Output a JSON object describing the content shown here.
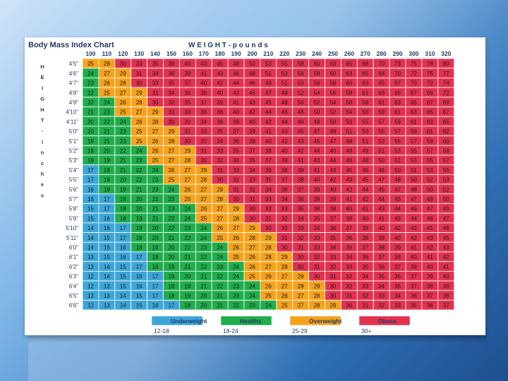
{
  "slide": {
    "colors": {
      "background_light": "#cfe4f8",
      "background_dark": "#1e4f8f",
      "card": "#ffffff"
    }
  },
  "chart_data": {
    "type": "table",
    "title": "Body Mass Index Chart",
    "column_axis_label": "W E I G H T - p o u n d s",
    "row_axis_label": [
      "H",
      "E",
      "I",
      "G",
      "H",
      "T",
      "-",
      "i",
      "n",
      "c",
      "h",
      "e",
      "s"
    ],
    "weights": [
      100,
      110,
      120,
      130,
      140,
      150,
      160,
      170,
      180,
      190,
      200,
      210,
      220,
      230,
      240,
      250,
      260,
      270,
      280,
      290,
      300,
      310,
      320
    ],
    "heights": [
      "4'5\"",
      "4'6\"",
      "4'7\"",
      "4'8\"",
      "4'9\"",
      "4'10\"",
      "4'11\"",
      "5'0\"",
      "5'1\"",
      "5'2\"",
      "5'3\"",
      "5'4\"",
      "5'5\"",
      "5'6\"",
      "5'7\"",
      "5'8\"",
      "5'9\"",
      "5'10\"",
      "5'11\"",
      "6'0\"",
      "6'1\"",
      "6'2\"",
      "6'3\"",
      "6'4\"",
      "6'5\"",
      "6'6\""
    ],
    "bmi": [
      [
        25,
        28,
        30,
        33,
        35,
        38,
        40,
        43,
        45,
        48,
        50,
        53,
        55,
        58,
        60,
        63,
        65,
        68,
        70,
        73,
        75,
        78,
        80
      ],
      [
        24,
        27,
        29,
        31,
        34,
        36,
        39,
        41,
        43,
        46,
        48,
        51,
        53,
        56,
        58,
        60,
        63,
        65,
        68,
        70,
        72,
        75,
        77
      ],
      [
        23,
        26,
        28,
        30,
        33,
        35,
        37,
        40,
        42,
        44,
        46,
        49,
        51,
        53,
        56,
        58,
        60,
        63,
        65,
        67,
        70,
        72,
        74
      ],
      [
        22,
        25,
        27,
        29,
        31,
        34,
        36,
        38,
        40,
        43,
        45,
        47,
        49,
        52,
        54,
        56,
        58,
        61,
        63,
        65,
        67,
        69,
        72
      ],
      [
        22,
        24,
        26,
        28,
        30,
        32,
        35,
        37,
        39,
        41,
        43,
        45,
        48,
        50,
        52,
        54,
        56,
        58,
        61,
        63,
        65,
        67,
        69
      ],
      [
        21,
        23,
        25,
        27,
        29,
        31,
        33,
        36,
        38,
        40,
        42,
        44,
        46,
        48,
        50,
        52,
        54,
        56,
        59,
        61,
        63,
        65,
        67
      ],
      [
        20,
        22,
        24,
        26,
        28,
        30,
        32,
        34,
        36,
        38,
        40,
        42,
        44,
        46,
        48,
        50,
        53,
        55,
        57,
        59,
        61,
        63,
        65
      ],
      [
        20,
        21,
        23,
        25,
        27,
        29,
        31,
        33,
        35,
        37,
        39,
        41,
        43,
        45,
        47,
        49,
        51,
        53,
        55,
        57,
        59,
        61,
        62
      ],
      [
        19,
        21,
        23,
        25,
        26,
        28,
        30,
        32,
        34,
        36,
        38,
        40,
        42,
        43,
        45,
        47,
        49,
        51,
        53,
        55,
        57,
        59,
        60
      ],
      [
        18,
        20,
        22,
        24,
        26,
        27,
        29,
        31,
        33,
        35,
        37,
        38,
        40,
        42,
        44,
        46,
        48,
        49,
        51,
        53,
        55,
        57,
        59
      ],
      [
        18,
        19,
        21,
        23,
        25,
        27,
        28,
        30,
        32,
        34,
        35,
        37,
        39,
        41,
        43,
        44,
        46,
        48,
        50,
        51,
        53,
        55,
        57
      ],
      [
        17,
        19,
        21,
        22,
        24,
        26,
        27,
        29,
        31,
        33,
        34,
        36,
        38,
        39,
        41,
        43,
        45,
        46,
        48,
        50,
        51,
        53,
        55
      ],
      [
        17,
        18,
        20,
        22,
        23,
        25,
        27,
        28,
        30,
        32,
        33,
        35,
        37,
        38,
        40,
        42,
        43,
        45,
        47,
        48,
        50,
        52,
        53
      ],
      [
        16,
        18,
        19,
        21,
        23,
        24,
        26,
        27,
        29,
        31,
        32,
        34,
        36,
        37,
        39,
        40,
        42,
        44,
        45,
        47,
        48,
        50,
        52
      ],
      [
        16,
        17,
        19,
        20,
        22,
        23,
        25,
        27,
        28,
        30,
        31,
        33,
        34,
        36,
        38,
        39,
        41,
        42,
        44,
        45,
        47,
        49,
        50
      ],
      [
        15,
        17,
        18,
        20,
        21,
        23,
        24,
        26,
        27,
        29,
        30,
        32,
        33,
        35,
        36,
        38,
        40,
        41,
        43,
        44,
        46,
        47,
        49
      ],
      [
        15,
        16,
        18,
        19,
        21,
        22,
        24,
        25,
        27,
        28,
        30,
        31,
        32,
        34,
        35,
        37,
        38,
        40,
        41,
        43,
        44,
        46,
        47
      ],
      [
        14,
        16,
        17,
        19,
        20,
        22,
        23,
        24,
        26,
        27,
        29,
        30,
        32,
        33,
        34,
        36,
        37,
        39,
        40,
        42,
        43,
        45,
        46
      ],
      [
        14,
        15,
        17,
        18,
        20,
        21,
        22,
        24,
        25,
        26,
        28,
        29,
        31,
        32,
        33,
        35,
        36,
        38,
        39,
        40,
        42,
        43,
        45
      ],
      [
        14,
        15,
        16,
        18,
        19,
        20,
        22,
        23,
        24,
        26,
        27,
        28,
        30,
        31,
        33,
        34,
        35,
        37,
        38,
        39,
        41,
        42,
        43
      ],
      [
        13,
        15,
        16,
        17,
        18,
        20,
        21,
        22,
        24,
        25,
        26,
        28,
        29,
        30,
        32,
        33,
        34,
        36,
        37,
        38,
        40,
        41,
        42
      ],
      [
        13,
        14,
        15,
        17,
        18,
        19,
        21,
        22,
        23,
        24,
        26,
        27,
        28,
        30,
        31,
        32,
        33,
        35,
        36,
        37,
        39,
        40,
        41
      ],
      [
        12,
        14,
        15,
        16,
        17,
        19,
        20,
        21,
        22,
        24,
        25,
        26,
        27,
        29,
        30,
        31,
        32,
        34,
        35,
        36,
        37,
        39,
        40
      ],
      [
        12,
        13,
        15,
        16,
        17,
        18,
        19,
        21,
        22,
        23,
        24,
        26,
        27,
        28,
        29,
        30,
        32,
        33,
        34,
        35,
        37,
        38,
        39
      ],
      [
        12,
        13,
        14,
        15,
        17,
        18,
        19,
        20,
        21,
        23,
        24,
        25,
        26,
        27,
        28,
        30,
        31,
        32,
        33,
        34,
        36,
        37,
        38
      ],
      [
        12,
        13,
        14,
        15,
        16,
        17,
        18,
        20,
        21,
        22,
        23,
        24,
        25,
        27,
        28,
        29,
        30,
        31,
        32,
        33,
        35,
        36,
        37
      ]
    ],
    "categories": [
      {
        "name": "Underweight",
        "range": "12-18",
        "color": "#3da6d8"
      },
      {
        "name": "Healthy",
        "range": "18-24",
        "color": "#1fae4b"
      },
      {
        "name": "Overweight",
        "range": "25-29",
        "color": "#f7a21b"
      },
      {
        "name": "Obese",
        "range": "30+",
        "color": "#e33150"
      }
    ],
    "grid": true,
    "legend_position": "bottom"
  }
}
